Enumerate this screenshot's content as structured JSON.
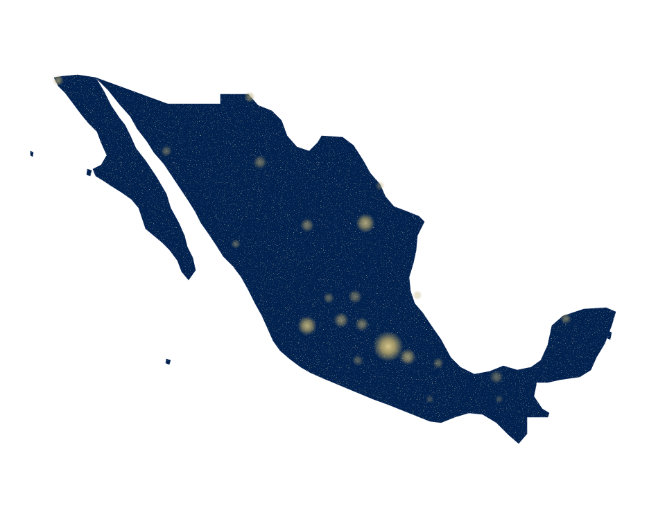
{
  "map": {
    "region": "Mexico",
    "land_color": "#01214f",
    "light_color": "#b5a56b",
    "background_color": "#ffffff"
  },
  "light_clusters": [
    {
      "name": "mexico-city-lights",
      "intensity": 1.0
    },
    {
      "name": "guadalajara-lights",
      "intensity": 0.85
    },
    {
      "name": "monterrey-lights",
      "intensity": 0.8
    },
    {
      "name": "puebla-lights",
      "intensity": 0.7
    },
    {
      "name": "leon-lights",
      "intensity": 0.6
    },
    {
      "name": "queretaro-lights",
      "intensity": 0.55
    },
    {
      "name": "san-luis-potosi-lights",
      "intensity": 0.5
    },
    {
      "name": "torreon-lights",
      "intensity": 0.55
    },
    {
      "name": "chihuahua-lights",
      "intensity": 0.5
    },
    {
      "name": "juarez-lights",
      "intensity": 0.55
    },
    {
      "name": "tijuana-lights",
      "intensity": 0.6
    },
    {
      "name": "merida-lights",
      "intensity": 0.5
    },
    {
      "name": "villahermosa-lights",
      "intensity": 0.45
    },
    {
      "name": "veracruz-lights",
      "intensity": 0.45
    },
    {
      "name": "hermosillo-lights",
      "intensity": 0.45
    },
    {
      "name": "culiacan-lights",
      "intensity": 0.4
    },
    {
      "name": "aguascalientes-lights",
      "intensity": 0.45
    },
    {
      "name": "morelia-lights",
      "intensity": 0.4
    },
    {
      "name": "tampico-lights",
      "intensity": 0.4
    },
    {
      "name": "reynosa-lights",
      "intensity": 0.4
    },
    {
      "name": "oaxaca-lights",
      "intensity": 0.3
    },
    {
      "name": "tuxtla-lights",
      "intensity": 0.3
    }
  ]
}
